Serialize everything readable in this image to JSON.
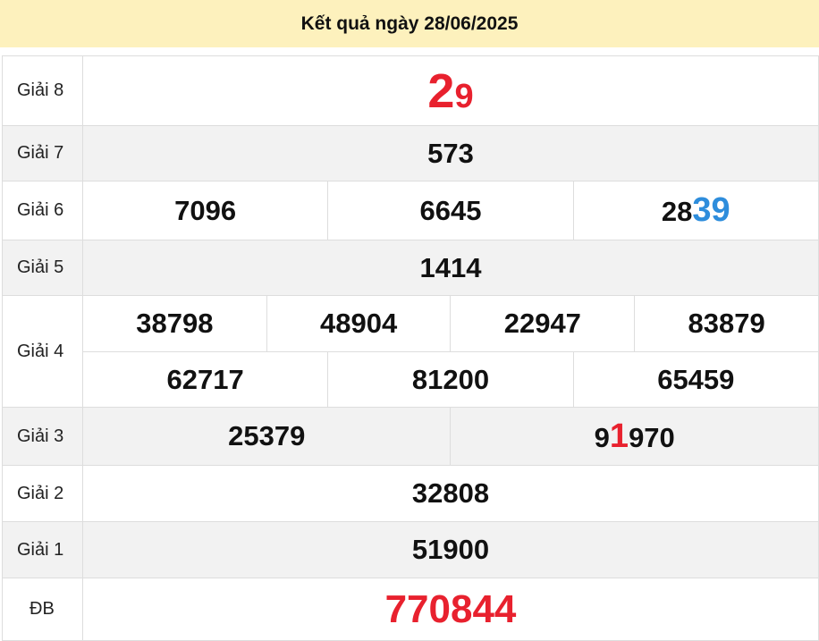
{
  "header": {
    "title": "Kết quả ngày 28/06/2025"
  },
  "colors": {
    "header_bg": "#fdf1bd",
    "highlight_red": "#e8212e",
    "highlight_blue": "#2e8ddc",
    "alt_row": "#f2f2f2"
  },
  "prizes": {
    "g8": {
      "label": "Giải 8",
      "parts": [
        "2",
        "9"
      ]
    },
    "g7": {
      "label": "Giải 7",
      "values": [
        "573"
      ]
    },
    "g6": {
      "label": "Giải 6",
      "values": [
        "7096",
        "6645"
      ],
      "v3_parts": [
        "28",
        "39"
      ]
    },
    "g5": {
      "label": "Giải 5",
      "values": [
        "1414"
      ]
    },
    "g4": {
      "label": "Giải 4",
      "values": [
        "38798",
        "48904",
        "22947",
        "83879",
        "62717",
        "81200",
        "65459"
      ]
    },
    "g3": {
      "label": "Giải 3",
      "values": [
        "25379"
      ],
      "v2_parts": [
        "9",
        "1",
        "970"
      ]
    },
    "g2": {
      "label": "Giải 2",
      "values": [
        "32808"
      ]
    },
    "g1": {
      "label": "Giải 1",
      "values": [
        "51900"
      ]
    },
    "db": {
      "label": "ĐB",
      "values": [
        "770844"
      ]
    }
  }
}
